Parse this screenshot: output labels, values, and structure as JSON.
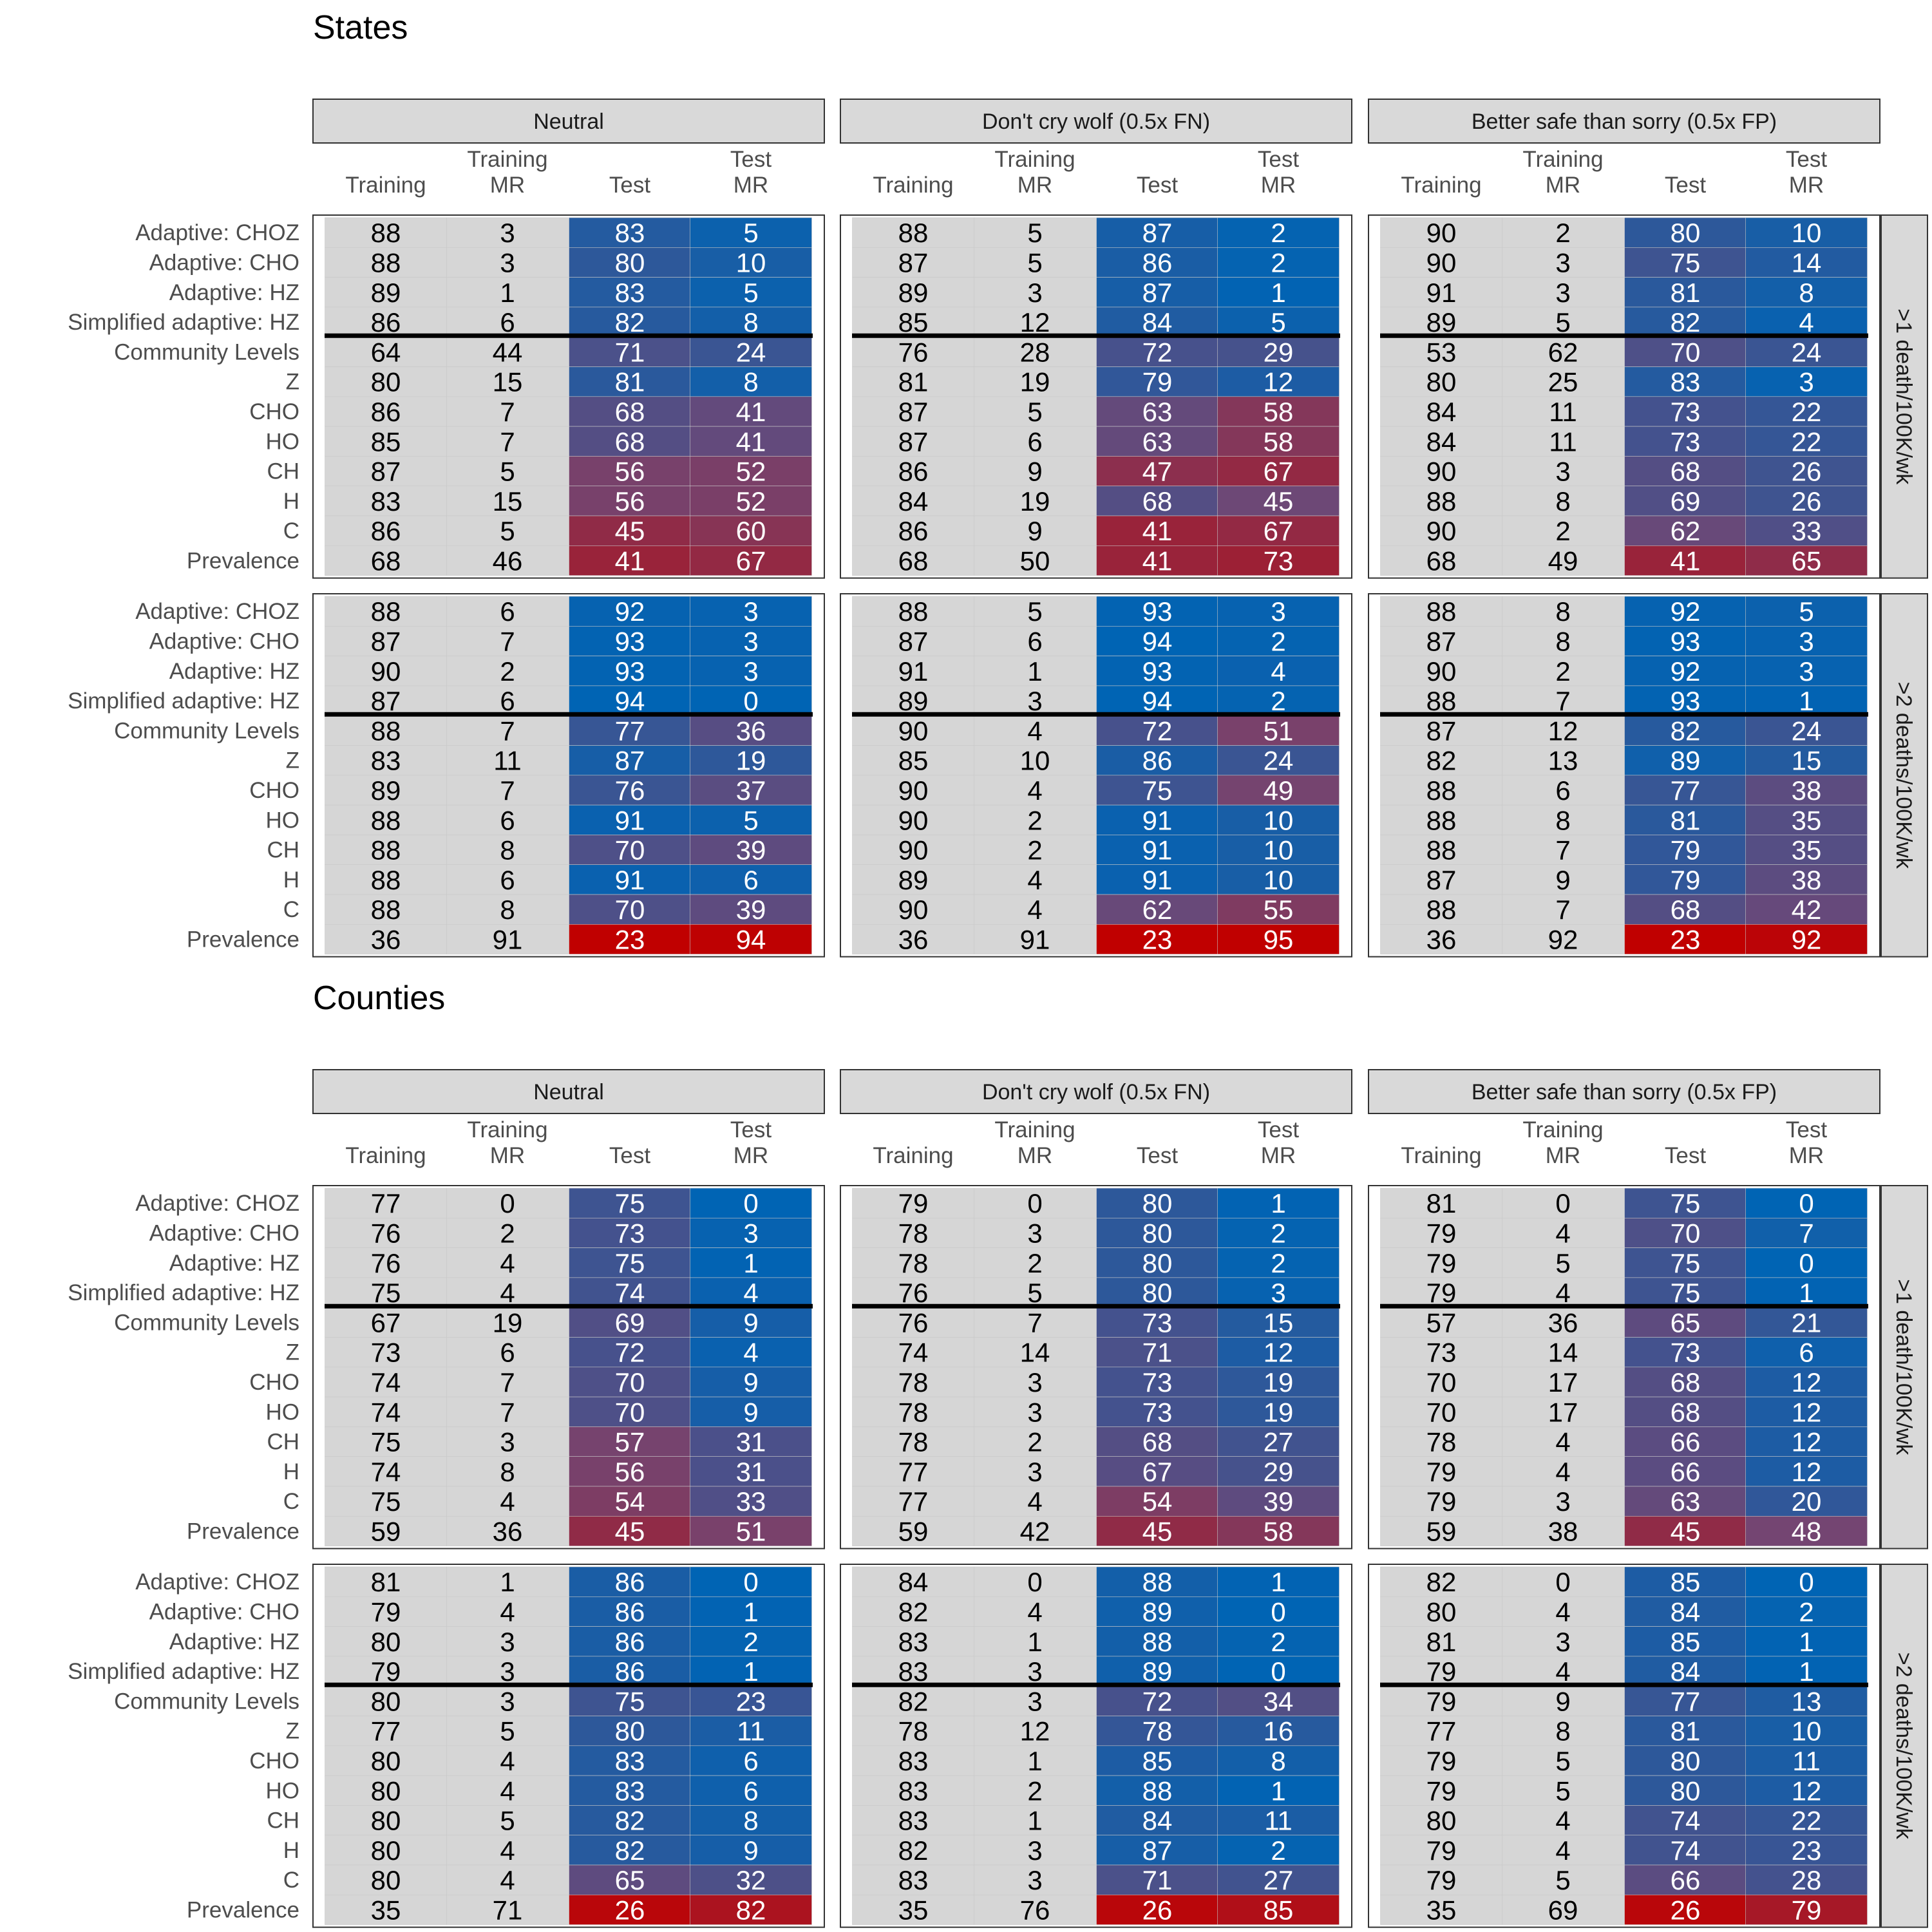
{
  "chart_data": {
    "type": "heatmap",
    "title": "",
    "color_scale": {
      "low": "#C00000",
      "high": "#0064B4",
      "gray": "#D6D6D6"
    },
    "strategies": [
      "Neutral",
      "Don't cry wolf (0.5x FN)",
      "Better safe than sorry (0.5x FP)"
    ],
    "thresholds": [
      ">1 death/100K/wk",
      ">2 deaths/100K/wk"
    ],
    "columns": [
      [
        "Training"
      ],
      [
        "Training",
        "MR"
      ],
      [
        "Test"
      ],
      [
        "Test",
        "MR"
      ]
    ],
    "rows": [
      "Adaptive: CHOZ",
      "Adaptive: CHO",
      "Adaptive: HZ",
      "Simplified adaptive: HZ",
      "Community Levels",
      "Z",
      "CHO",
      "HO",
      "CH",
      "H",
      "C",
      "Prevalence"
    ],
    "sections": [
      {
        "name": "States",
        "panels": [
          [
            [
              [
                88,
                3,
                83,
                5
              ],
              [
                88,
                3,
                80,
                10
              ],
              [
                89,
                1,
                83,
                5
              ],
              [
                86,
                6,
                82,
                8
              ],
              [
                64,
                44,
                71,
                24
              ],
              [
                80,
                15,
                81,
                8
              ],
              [
                86,
                7,
                68,
                41
              ],
              [
                85,
                7,
                68,
                41
              ],
              [
                87,
                5,
                56,
                52
              ],
              [
                83,
                15,
                56,
                52
              ],
              [
                86,
                5,
                45,
                60
              ],
              [
                68,
                46,
                41,
                67
              ]
            ],
            [
              [
                88,
                5,
                87,
                2
              ],
              [
                87,
                5,
                86,
                2
              ],
              [
                89,
                3,
                87,
                1
              ],
              [
                85,
                12,
                84,
                5
              ],
              [
                76,
                28,
                72,
                29
              ],
              [
                81,
                19,
                79,
                12
              ],
              [
                87,
                5,
                63,
                58
              ],
              [
                87,
                6,
                63,
                58
              ],
              [
                86,
                9,
                47,
                67
              ],
              [
                84,
                19,
                68,
                45
              ],
              [
                86,
                9,
                41,
                67
              ],
              [
                68,
                50,
                41,
                73
              ]
            ],
            [
              [
                90,
                2,
                80,
                10
              ],
              [
                90,
                3,
                75,
                14
              ],
              [
                91,
                3,
                81,
                8
              ],
              [
                89,
                5,
                82,
                4
              ],
              [
                53,
                62,
                70,
                24
              ],
              [
                80,
                25,
                83,
                3
              ],
              [
                84,
                11,
                73,
                22
              ],
              [
                84,
                11,
                73,
                22
              ],
              [
                90,
                3,
                68,
                26
              ],
              [
                88,
                8,
                69,
                26
              ],
              [
                90,
                2,
                62,
                33
              ],
              [
                68,
                49,
                41,
                65
              ]
            ]
          ],
          [
            [
              [
                88,
                6,
                92,
                3
              ],
              [
                87,
                7,
                93,
                3
              ],
              [
                90,
                2,
                93,
                3
              ],
              [
                87,
                6,
                94,
                0
              ],
              [
                88,
                7,
                77,
                36
              ],
              [
                83,
                11,
                87,
                19
              ],
              [
                89,
                7,
                76,
                37
              ],
              [
                88,
                6,
                91,
                5
              ],
              [
                88,
                8,
                70,
                39
              ],
              [
                88,
                6,
                91,
                6
              ],
              [
                88,
                8,
                70,
                39
              ],
              [
                36,
                91,
                23,
                94
              ]
            ],
            [
              [
                88,
                5,
                93,
                3
              ],
              [
                87,
                6,
                94,
                2
              ],
              [
                91,
                1,
                93,
                4
              ],
              [
                89,
                3,
                94,
                2
              ],
              [
                90,
                4,
                72,
                51
              ],
              [
                85,
                10,
                86,
                24
              ],
              [
                90,
                4,
                75,
                49
              ],
              [
                90,
                2,
                91,
                10
              ],
              [
                90,
                2,
                91,
                10
              ],
              [
                89,
                4,
                91,
                10
              ],
              [
                90,
                4,
                62,
                55
              ],
              [
                36,
                91,
                23,
                95
              ]
            ],
            [
              [
                88,
                8,
                92,
                5
              ],
              [
                87,
                8,
                93,
                3
              ],
              [
                90,
                2,
                92,
                3
              ],
              [
                88,
                7,
                93,
                1
              ],
              [
                87,
                12,
                82,
                24
              ],
              [
                82,
                13,
                89,
                15
              ],
              [
                88,
                6,
                77,
                38
              ],
              [
                88,
                8,
                81,
                35
              ],
              [
                88,
                7,
                79,
                35
              ],
              [
                87,
                9,
                79,
                38
              ],
              [
                88,
                7,
                68,
                42
              ],
              [
                36,
                92,
                23,
                92
              ]
            ]
          ]
        ]
      },
      {
        "name": "Counties",
        "panels": [
          [
            [
              [
                77,
                0,
                75,
                0
              ],
              [
                76,
                2,
                73,
                3
              ],
              [
                76,
                4,
                75,
                1
              ],
              [
                75,
                4,
                74,
                4
              ],
              [
                67,
                19,
                69,
                9
              ],
              [
                73,
                6,
                72,
                4
              ],
              [
                74,
                7,
                70,
                9
              ],
              [
                74,
                7,
                70,
                9
              ],
              [
                75,
                3,
                57,
                31
              ],
              [
                74,
                8,
                56,
                31
              ],
              [
                75,
                4,
                54,
                33
              ],
              [
                59,
                36,
                45,
                51
              ]
            ],
            [
              [
                79,
                0,
                80,
                1
              ],
              [
                78,
                3,
                80,
                2
              ],
              [
                78,
                2,
                80,
                2
              ],
              [
                76,
                5,
                80,
                3
              ],
              [
                76,
                7,
                73,
                15
              ],
              [
                74,
                14,
                71,
                12
              ],
              [
                78,
                3,
                73,
                19
              ],
              [
                78,
                3,
                73,
                19
              ],
              [
                78,
                2,
                68,
                27
              ],
              [
                77,
                3,
                67,
                29
              ],
              [
                77,
                4,
                54,
                39
              ],
              [
                59,
                42,
                45,
                58
              ]
            ],
            [
              [
                81,
                0,
                75,
                0
              ],
              [
                79,
                4,
                70,
                7
              ],
              [
                79,
                5,
                75,
                0
              ],
              [
                79,
                4,
                75,
                1
              ],
              [
                57,
                36,
                65,
                21
              ],
              [
                73,
                14,
                73,
                6
              ],
              [
                70,
                17,
                68,
                12
              ],
              [
                70,
                17,
                68,
                12
              ],
              [
                78,
                4,
                66,
                12
              ],
              [
                79,
                4,
                66,
                12
              ],
              [
                79,
                3,
                63,
                20
              ],
              [
                59,
                38,
                45,
                48
              ]
            ]
          ],
          [
            [
              [
                81,
                1,
                86,
                0
              ],
              [
                79,
                4,
                86,
                1
              ],
              [
                80,
                3,
                86,
                2
              ],
              [
                79,
                3,
                86,
                1
              ],
              [
                80,
                3,
                75,
                23
              ],
              [
                77,
                5,
                80,
                11
              ],
              [
                80,
                4,
                83,
                6
              ],
              [
                80,
                4,
                83,
                6
              ],
              [
                80,
                5,
                82,
                8
              ],
              [
                80,
                4,
                82,
                9
              ],
              [
                80,
                4,
                65,
                32
              ],
              [
                35,
                71,
                26,
                82
              ]
            ],
            [
              [
                84,
                0,
                88,
                1
              ],
              [
                82,
                4,
                89,
                0
              ],
              [
                83,
                1,
                88,
                2
              ],
              [
                83,
                3,
                89,
                0
              ],
              [
                82,
                3,
                72,
                34
              ],
              [
                78,
                12,
                78,
                16
              ],
              [
                83,
                1,
                85,
                8
              ],
              [
                83,
                2,
                88,
                1
              ],
              [
                83,
                1,
                84,
                11
              ],
              [
                82,
                3,
                87,
                2
              ],
              [
                83,
                3,
                71,
                27
              ],
              [
                35,
                76,
                26,
                85
              ]
            ],
            [
              [
                82,
                0,
                85,
                0
              ],
              [
                80,
                4,
                84,
                2
              ],
              [
                81,
                3,
                85,
                1
              ],
              [
                79,
                4,
                84,
                1
              ],
              [
                79,
                9,
                77,
                13
              ],
              [
                77,
                8,
                81,
                10
              ],
              [
                79,
                5,
                80,
                11
              ],
              [
                79,
                5,
                80,
                12
              ],
              [
                80,
                4,
                74,
                22
              ],
              [
                79,
                4,
                74,
                23
              ],
              [
                79,
                5,
                66,
                28
              ],
              [
                35,
                69,
                26,
                79
              ]
            ]
          ]
        ]
      }
    ]
  }
}
